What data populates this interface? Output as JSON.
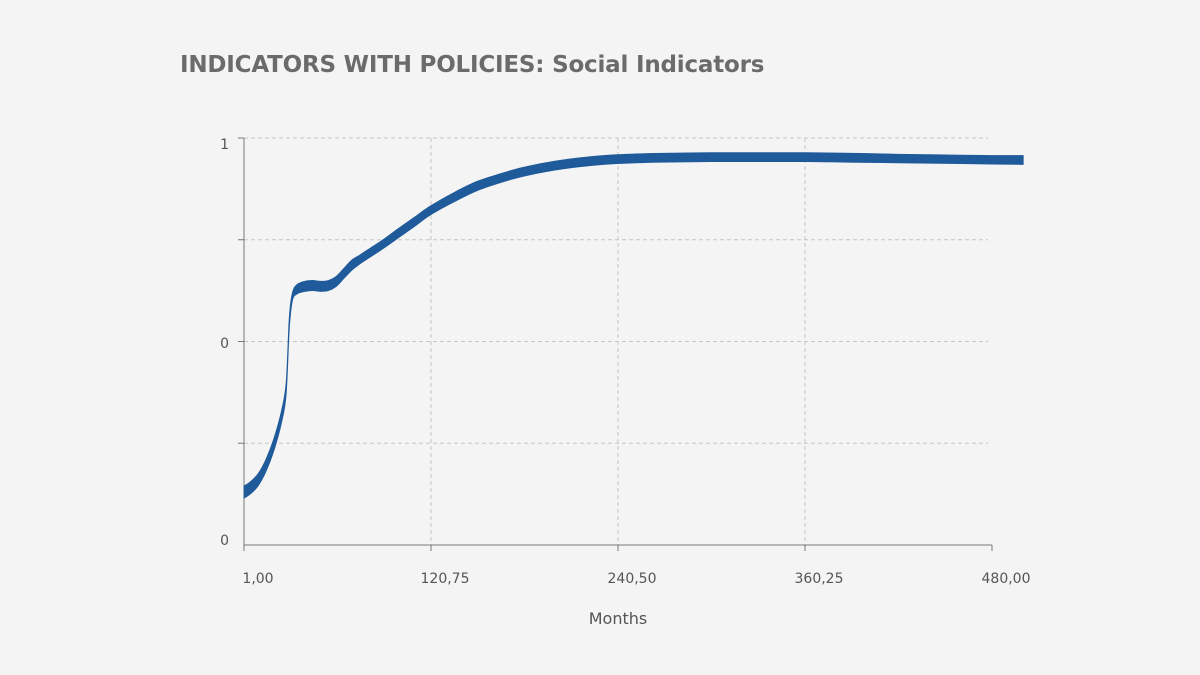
{
  "chart_data": {
    "type": "area",
    "title": "INDICATORS WITH POLICIES: Social Indicators",
    "xlabel": "Months",
    "ylabel": "",
    "x_tick_labels": [
      "1,00",
      "120,75",
      "240,50",
      "360,25",
      "480,00"
    ],
    "y_tick_labels": [
      "0",
      "0",
      "1"
    ],
    "xlim": [
      1,
      480
    ],
    "ylim": [
      0,
      1
    ],
    "grid": true,
    "series": [
      {
        "name": "Social Indicators",
        "color": "#1f5a9a",
        "x": [
          1,
          5,
          10,
          15,
          20,
          25,
          28,
          30,
          32,
          35,
          40,
          45,
          50,
          55,
          60,
          65,
          70,
          75,
          80,
          90,
          100,
          110,
          120,
          135,
          150,
          165,
          180,
          200,
          220,
          240,
          260,
          280,
          300,
          320,
          340,
          360,
          380,
          400,
          420,
          440,
          460,
          480,
          500
        ],
        "upper": [
          0.145,
          0.155,
          0.175,
          0.21,
          0.26,
          0.33,
          0.4,
          0.56,
          0.62,
          0.64,
          0.648,
          0.65,
          0.648,
          0.65,
          0.66,
          0.68,
          0.7,
          0.712,
          0.725,
          0.75,
          0.778,
          0.805,
          0.832,
          0.865,
          0.893,
          0.912,
          0.928,
          0.943,
          0.953,
          0.959,
          0.962,
          0.963,
          0.964,
          0.964,
          0.964,
          0.964,
          0.963,
          0.962,
          0.96,
          0.959,
          0.958,
          0.957,
          0.957
        ],
        "lower": [
          0.115,
          0.125,
          0.145,
          0.18,
          0.23,
          0.3,
          0.37,
          0.53,
          0.6,
          0.617,
          0.623,
          0.625,
          0.623,
          0.625,
          0.635,
          0.655,
          0.675,
          0.69,
          0.703,
          0.728,
          0.755,
          0.782,
          0.81,
          0.842,
          0.87,
          0.89,
          0.906,
          0.921,
          0.931,
          0.937,
          0.94,
          0.941,
          0.942,
          0.942,
          0.942,
          0.942,
          0.941,
          0.94,
          0.939,
          0.938,
          0.937,
          0.936,
          0.935
        ]
      }
    ]
  }
}
